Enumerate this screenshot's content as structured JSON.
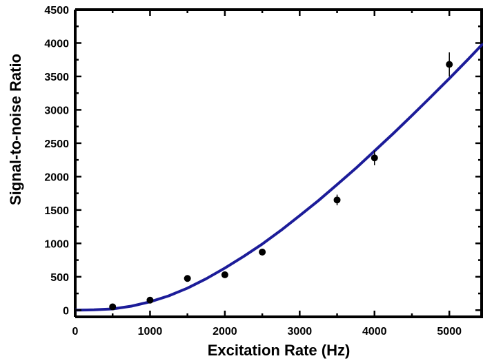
{
  "chart_data": {
    "type": "scatter",
    "xlabel": "Excitation Rate (Hz)",
    "ylabel": "Signal-to-noise Ratio",
    "xlim": [
      0,
      5450
    ],
    "ylim": [
      -100,
      4500
    ],
    "x_ticks": [
      0,
      1000,
      2000,
      3000,
      4000,
      5000
    ],
    "y_ticks": [
      0,
      500,
      1000,
      1500,
      2000,
      2500,
      3000,
      3500,
      4000,
      4500
    ],
    "grid": false,
    "legend": "none",
    "points": [
      {
        "x": 500,
        "y": 50,
        "err": 0
      },
      {
        "x": 1000,
        "y": 150,
        "err": 0
      },
      {
        "x": 1500,
        "y": 475,
        "err": 0
      },
      {
        "x": 2000,
        "y": 530,
        "err": 0
      },
      {
        "x": 2500,
        "y": 870,
        "err": 0
      },
      {
        "x": 3500,
        "y": 1650,
        "err": 80
      },
      {
        "x": 4000,
        "y": 2280,
        "err": 110
      },
      {
        "x": 5000,
        "y": 3680,
        "err": 180
      }
    ],
    "fit_curve": {
      "x": [
        0,
        250,
        500,
        750,
        1000,
        1250,
        1500,
        1750,
        2000,
        2250,
        2500,
        2750,
        3000,
        3250,
        3500,
        3750,
        4000,
        4250,
        4500,
        4750,
        5000,
        5250,
        5450
      ],
      "y": [
        0,
        5,
        19,
        60,
        125,
        215,
        330,
        470,
        630,
        805,
        990,
        1195,
        1415,
        1640,
        1880,
        2125,
        2385,
        2645,
        2915,
        3190,
        3470,
        3755,
        3990
      ]
    },
    "colors": {
      "fit_line": "#1c1c99",
      "points": "#000000",
      "axes": "#000000"
    }
  }
}
